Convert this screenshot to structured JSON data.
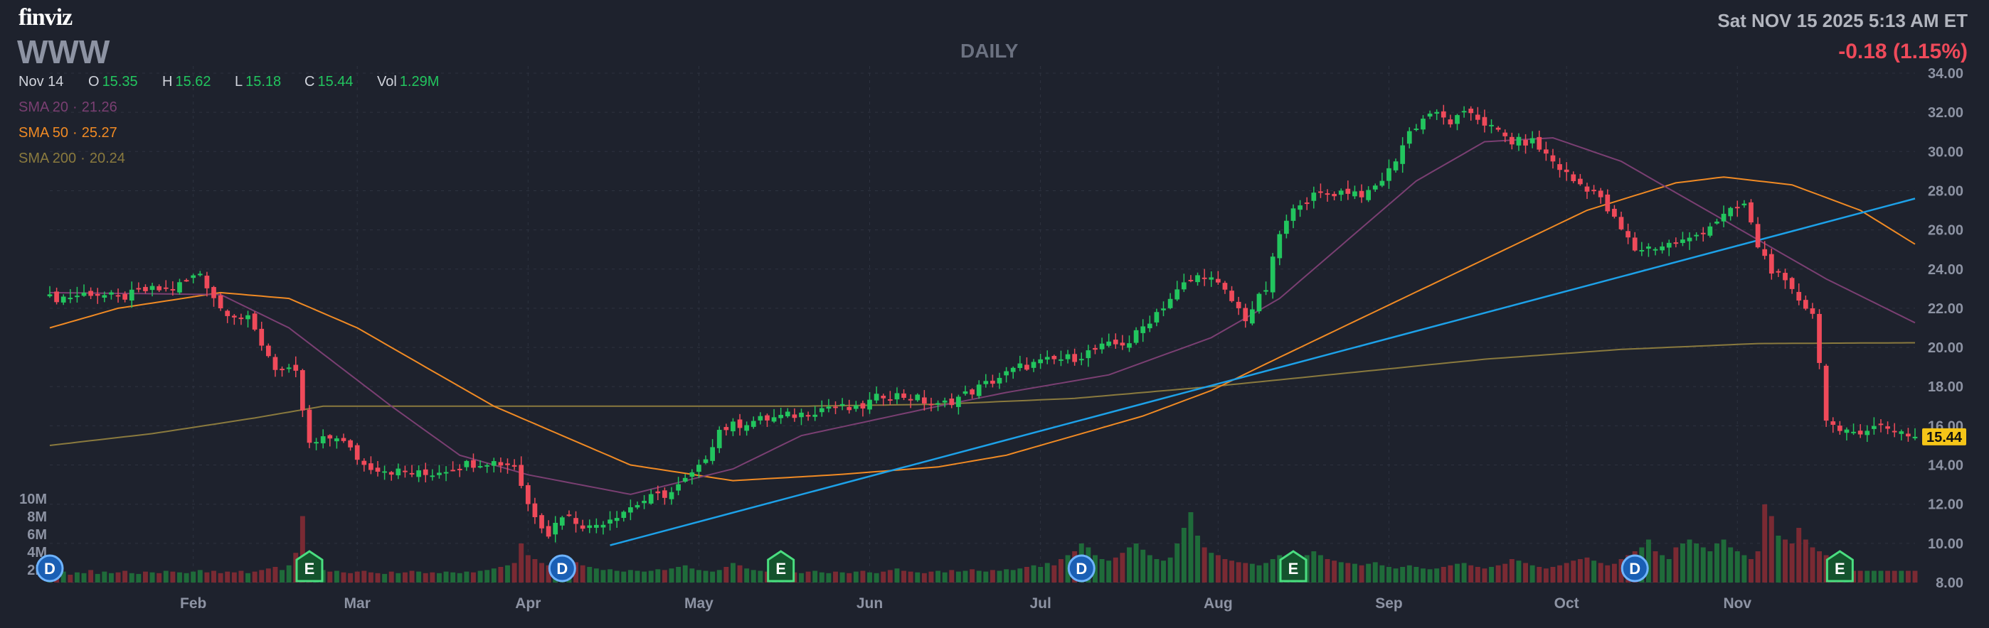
{
  "header": {
    "logo": "finviz",
    "ticker": "WWW",
    "timeframe": "DAILY",
    "datetime": "Sat NOV 15 2025 5:13 AM ET",
    "change": "-0.18 (1.15%)"
  },
  "ohlc": {
    "date": "Nov 14",
    "open_label": "O",
    "open": "15.35",
    "high_label": "H",
    "high": "15.62",
    "low_label": "L",
    "low": "15.18",
    "close_label": "C",
    "close": "15.44",
    "vol_label": "Vol",
    "vol": "1.29M"
  },
  "indicators": [
    {
      "label": "SMA 20",
      "value": "21.26",
      "color": "#7a3f72"
    },
    {
      "label": "SMA 50",
      "value": "25.27",
      "color": "#f08a24"
    },
    {
      "label": "SMA 200",
      "value": "20.24",
      "color": "#8a7a3e"
    }
  ],
  "colors": {
    "up": "#22c55e",
    "down": "#ef4a5a",
    "up_vol": "#1f6b3a",
    "down_vol": "#7a2a33",
    "trendline": "#1da1e8",
    "grid": "#2e3340",
    "axis_text": "#8d93a3",
    "price_label_bg": "#f5c518"
  },
  "chart_data": {
    "type": "candlestick",
    "title": "WWW",
    "y_axis_ticks": [
      "34.00",
      "32.00",
      "30.00",
      "28.00",
      "26.00",
      "24.00",
      "22.00",
      "20.00",
      "18.00",
      "16.00",
      "14.00",
      "12.00",
      "10.00",
      "8.00"
    ],
    "ylim": [
      8,
      34
    ],
    "x_axis_ticks": [
      "Feb",
      "Mar",
      "Apr",
      "May",
      "Jun",
      "Jul",
      "Aug",
      "Sep",
      "Oct",
      "Nov"
    ],
    "volume_axis_ticks": [
      "10M",
      "8M",
      "6M",
      "4M",
      "2M"
    ],
    "last_price": "15.44",
    "ohlc_anchors": [
      [
        0,
        22.5
      ],
      [
        3,
        22.6
      ],
      [
        6,
        22.8
      ],
      [
        10,
        22.5
      ],
      [
        14,
        22.9
      ],
      [
        18,
        23.0
      ],
      [
        22,
        23.8
      ],
      [
        25,
        22.0
      ],
      [
        29,
        21.4
      ],
      [
        33,
        19.0
      ],
      [
        36,
        18.6
      ],
      [
        38,
        15.0
      ],
      [
        42,
        15.5
      ],
      [
        46,
        14.0
      ],
      [
        50,
        13.7
      ],
      [
        55,
        13.5
      ],
      [
        60,
        14.0
      ],
      [
        64,
        14.2
      ],
      [
        68,
        14.0
      ],
      [
        70,
        12.0
      ],
      [
        73,
        10.5
      ],
      [
        75,
        11.5
      ],
      [
        79,
        10.8
      ],
      [
        83,
        11.5
      ],
      [
        87,
        12.2
      ],
      [
        91,
        12.6
      ],
      [
        95,
        13.8
      ],
      [
        98,
        15.8
      ],
      [
        102,
        16.2
      ],
      [
        106,
        16.4
      ],
      [
        110,
        16.6
      ],
      [
        114,
        17.0
      ],
      [
        118,
        16.8
      ],
      [
        122,
        17.6
      ],
      [
        126,
        17.5
      ],
      [
        130,
        17.0
      ],
      [
        134,
        17.6
      ],
      [
        138,
        18.3
      ],
      [
        142,
        19.0
      ],
      [
        146,
        19.3
      ],
      [
        150,
        19.5
      ],
      [
        154,
        20.0
      ],
      [
        158,
        20.3
      ],
      [
        162,
        21.8
      ],
      [
        166,
        23.2
      ],
      [
        169,
        23.8
      ],
      [
        172,
        22.8
      ],
      [
        175,
        21.5
      ],
      [
        178,
        23.0
      ],
      [
        180,
        25.8
      ],
      [
        183,
        27.5
      ],
      [
        186,
        27.8
      ],
      [
        190,
        28.0
      ],
      [
        193,
        27.8
      ],
      [
        196,
        29.0
      ],
      [
        199,
        31.0
      ],
      [
        202,
        32.0
      ],
      [
        205,
        31.5
      ],
      [
        208,
        32.0
      ],
      [
        211,
        31.2
      ],
      [
        214,
        30.5
      ],
      [
        217,
        30.5
      ],
      [
        220,
        29.5
      ],
      [
        223,
        28.5
      ],
      [
        226,
        28.0
      ],
      [
        229,
        26.5
      ],
      [
        232,
        25.0
      ],
      [
        236,
        25.2
      ],
      [
        240,
        25.5
      ],
      [
        244,
        26.5
      ],
      [
        248,
        27.3
      ],
      [
        250,
        25.2
      ],
      [
        252,
        24.0
      ],
      [
        255,
        22.8
      ],
      [
        258,
        21.8
      ],
      [
        260,
        16.5
      ],
      [
        262,
        15.5
      ],
      [
        265,
        15.8
      ],
      [
        268,
        16.0
      ],
      [
        271,
        15.7
      ],
      [
        273,
        15.44
      ]
    ],
    "sma20": [
      [
        0,
        22.8
      ],
      [
        25,
        22.7
      ],
      [
        35,
        21.0
      ],
      [
        50,
        17.0
      ],
      [
        60,
        14.5
      ],
      [
        70,
        13.5
      ],
      [
        85,
        12.5
      ],
      [
        100,
        13.8
      ],
      [
        110,
        15.5
      ],
      [
        130,
        17.0
      ],
      [
        140,
        17.7
      ],
      [
        155,
        18.6
      ],
      [
        170,
        20.5
      ],
      [
        180,
        22.5
      ],
      [
        190,
        25.5
      ],
      [
        200,
        28.5
      ],
      [
        210,
        30.5
      ],
      [
        220,
        30.7
      ],
      [
        230,
        29.5
      ],
      [
        240,
        27.5
      ],
      [
        250,
        25.5
      ],
      [
        260,
        23.5
      ],
      [
        273,
        21.26
      ]
    ],
    "sma50": [
      [
        0,
        21.0
      ],
      [
        10,
        22.0
      ],
      [
        25,
        22.8
      ],
      [
        35,
        22.5
      ],
      [
        45,
        21.0
      ],
      [
        55,
        19.0
      ],
      [
        65,
        17.0
      ],
      [
        75,
        15.5
      ],
      [
        85,
        14.0
      ],
      [
        100,
        13.2
      ],
      [
        115,
        13.5
      ],
      [
        130,
        13.9
      ],
      [
        140,
        14.5
      ],
      [
        150,
        15.5
      ],
      [
        160,
        16.5
      ],
      [
        170,
        17.8
      ],
      [
        180,
        19.5
      ],
      [
        195,
        22.0
      ],
      [
        210,
        24.5
      ],
      [
        225,
        27.0
      ],
      [
        238,
        28.4
      ],
      [
        245,
        28.7
      ],
      [
        255,
        28.3
      ],
      [
        265,
        27.0
      ],
      [
        273,
        25.27
      ]
    ],
    "sma200": [
      [
        0,
        15.0
      ],
      [
        15,
        15.6
      ],
      [
        30,
        16.4
      ],
      [
        40,
        17.0
      ],
      [
        60,
        17.0
      ],
      [
        90,
        17.0
      ],
      [
        110,
        17.0
      ],
      [
        130,
        17.1
      ],
      [
        150,
        17.4
      ],
      [
        170,
        18.0
      ],
      [
        190,
        18.7
      ],
      [
        210,
        19.4
      ],
      [
        230,
        19.9
      ],
      [
        250,
        20.2
      ],
      [
        273,
        20.24
      ]
    ],
    "trendline": [
      [
        82,
        9.9
      ],
      [
        273,
        27.6
      ]
    ],
    "volume_levels": [
      0.15,
      0.12,
      0.14,
      0.1,
      0.13,
      0.12,
      0.16,
      0.11,
      0.14,
      0.12,
      0.13,
      0.15,
      0.12,
      0.11,
      0.14,
      0.13,
      0.12,
      0.15,
      0.14,
      0.13,
      0.12,
      0.14,
      0.16,
      0.13,
      0.15,
      0.12,
      0.14,
      0.13,
      0.15,
      0.12,
      0.14,
      0.16,
      0.18,
      0.2,
      0.16,
      0.22,
      0.38,
      0.85,
      0.3,
      0.2,
      0.16,
      0.14,
      0.15,
      0.13,
      0.12,
      0.14,
      0.15,
      0.13,
      0.12,
      0.11,
      0.14,
      0.12,
      0.13,
      0.15,
      0.14,
      0.12,
      0.13,
      0.12,
      0.14,
      0.13,
      0.12,
      0.14,
      0.13,
      0.15,
      0.16,
      0.18,
      0.2,
      0.22,
      0.25,
      0.5,
      0.35,
      0.3,
      0.25,
      0.22,
      0.2,
      0.28,
      0.32,
      0.26,
      0.22,
      0.2,
      0.18,
      0.16,
      0.17,
      0.15,
      0.14,
      0.16,
      0.15,
      0.14,
      0.15,
      0.17,
      0.16,
      0.18,
      0.2,
      0.22,
      0.18,
      0.16,
      0.15,
      0.14,
      0.16,
      0.2,
      0.25,
      0.22,
      0.18,
      0.16,
      0.15,
      0.14,
      0.13,
      0.15,
      0.14,
      0.13,
      0.12,
      0.14,
      0.15,
      0.13,
      0.12,
      0.14,
      0.13,
      0.12,
      0.14,
      0.15,
      0.13,
      0.12,
      0.14,
      0.16,
      0.18,
      0.15,
      0.14,
      0.13,
      0.12,
      0.14,
      0.15,
      0.13,
      0.16,
      0.14,
      0.15,
      0.17,
      0.15,
      0.14,
      0.16,
      0.15,
      0.17,
      0.16,
      0.18,
      0.2,
      0.22,
      0.2,
      0.25,
      0.22,
      0.3,
      0.35,
      0.4,
      0.5,
      0.45,
      0.35,
      0.3,
      0.28,
      0.32,
      0.38,
      0.45,
      0.5,
      0.42,
      0.35,
      0.3,
      0.28,
      0.32,
      0.5,
      0.7,
      0.9,
      0.6,
      0.45,
      0.38,
      0.35,
      0.3,
      0.28,
      0.26,
      0.25,
      0.24,
      0.22,
      0.25,
      0.3,
      0.35,
      0.3,
      0.28,
      0.32,
      0.35,
      0.4,
      0.35,
      0.3,
      0.28,
      0.26,
      0.25,
      0.24,
      0.22,
      0.24,
      0.26,
      0.22,
      0.2,
      0.18,
      0.2,
      0.22,
      0.2,
      0.18,
      0.17,
      0.18,
      0.2,
      0.22,
      0.24,
      0.25,
      0.22,
      0.2,
      0.18,
      0.2,
      0.22,
      0.24,
      0.3,
      0.28,
      0.25,
      0.22,
      0.2,
      0.18,
      0.2,
      0.22,
      0.25,
      0.28,
      0.3,
      0.32,
      0.28,
      0.25,
      0.22,
      0.24,
      0.3,
      0.35,
      0.4,
      0.45,
      0.55,
      0.4,
      0.35,
      0.3,
      0.45,
      0.5,
      0.55,
      0.5,
      0.45,
      0.4,
      0.5,
      0.55,
      0.45,
      0.4,
      0.35,
      0.3,
      0.4,
      1.0,
      0.85,
      0.6,
      0.55,
      0.5,
      0.7,
      0.55,
      0.45,
      0.4,
      0.35,
      0.3,
      0.3,
      0.28
    ],
    "events": [
      {
        "label": "D",
        "bar": 0,
        "type": "dividend"
      },
      {
        "label": "E",
        "bar": 38,
        "type": "earnings"
      },
      {
        "label": "D",
        "bar": 75,
        "type": "dividend"
      },
      {
        "label": "E",
        "bar": 107,
        "type": "earnings"
      },
      {
        "label": "D",
        "bar": 151,
        "type": "dividend"
      },
      {
        "label": "E",
        "bar": 182,
        "type": "earnings"
      },
      {
        "label": "D",
        "bar": 232,
        "type": "dividend"
      },
      {
        "label": "E",
        "bar": 262,
        "type": "earnings"
      }
    ]
  }
}
